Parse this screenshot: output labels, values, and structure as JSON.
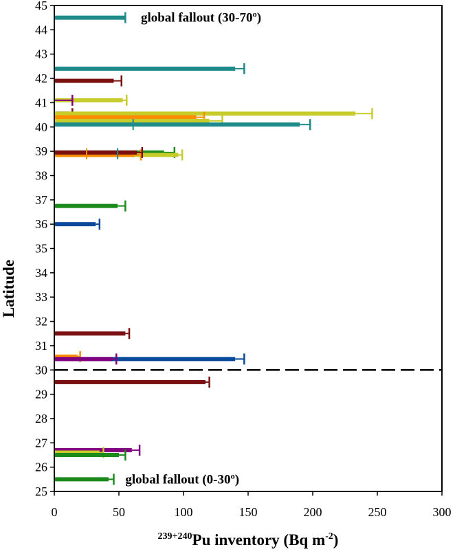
{
  "chart_data": {
    "type": "bar",
    "orientation": "horizontal",
    "xlabel_sup": "239+240",
    "xlabel_main": "Pu inventory (Bq m",
    "xlabel_exp": "-2",
    "xlabel_end": ")",
    "ylabel": "Latitude",
    "xlim": [
      0,
      300
    ],
    "ylim": [
      25,
      45
    ],
    "xticks": [
      0,
      50,
      100,
      150,
      200,
      250,
      300
    ],
    "yticks": [
      25,
      26,
      27,
      28,
      29,
      30,
      31,
      32,
      33,
      34,
      35,
      36,
      37,
      38,
      39,
      40,
      41,
      42,
      43,
      44,
      45
    ],
    "grid": false,
    "reference_line": {
      "y": 30,
      "style": "dashed"
    },
    "annotations": [
      {
        "text": "global fallout  (30-70º)",
        "x": 67,
        "y": 44.5
      },
      {
        "text": "global fallout  (0-30º)",
        "x": 55,
        "y": 25.5
      }
    ],
    "bars": [
      {
        "y": 44.5,
        "value": 55,
        "err": 55,
        "color": "#1e8a8a"
      },
      {
        "y": 42.4,
        "value": 140,
        "err": 147,
        "color": "#1e8a8a"
      },
      {
        "y": 41.9,
        "value": 46,
        "err": 52,
        "color": "#7a1010"
      },
      {
        "y": 41.1,
        "value": 53,
        "err": 56,
        "color": "#c8cc2a"
      },
      {
        "y": 41.1,
        "value": 0,
        "err": 14,
        "color": "#800080"
      },
      {
        "y": 40.55,
        "value": 12,
        "err": 14,
        "color": "#7a1010"
      },
      {
        "y": 40.55,
        "value": 233,
        "err": 246,
        "color": "#c8cc2a"
      },
      {
        "y": 40.4,
        "value": 110,
        "err": 116,
        "color": "#ff8c00"
      },
      {
        "y": 40.25,
        "value": 120,
        "err": 130,
        "color": "#c8cc2a"
      },
      {
        "y": 40.1,
        "value": 190,
        "err": 198,
        "color": "#1e8a8a"
      },
      {
        "y": 38.95,
        "value": 85,
        "err": 93,
        "color": "#1a8a1a"
      },
      {
        "y": 38.85,
        "value": 96,
        "err": 99,
        "color": "#c8cc2a"
      },
      {
        "y": 38.85,
        "value": 62,
        "err": 67,
        "color": "#ff8c00"
      },
      {
        "y": 38.95,
        "value": 64,
        "err": 68,
        "color": "#7a1010"
      },
      {
        "y": 36.75,
        "value": 49,
        "err": 55,
        "color": "#1a8a1a"
      },
      {
        "y": 36.0,
        "value": 32,
        "err": 35,
        "color": "#0a4a9a"
      },
      {
        "y": 31.5,
        "value": 55,
        "err": 58,
        "color": "#7a1010"
      },
      {
        "y": 30.55,
        "value": 18,
        "err": 20,
        "color": "#ff8c00"
      },
      {
        "y": 30.45,
        "value": 140,
        "err": 147,
        "color": "#0a4a9a"
      },
      {
        "y": 30.45,
        "value": 45,
        "err": 48,
        "color": "#800080"
      },
      {
        "y": 29.5,
        "value": 117,
        "err": 120,
        "color": "#7a1010"
      },
      {
        "y": 26.7,
        "value": 60,
        "err": 66,
        "color": "#800080"
      },
      {
        "y": 26.6,
        "value": 35,
        "err": 38,
        "color": "#c8cc2a"
      },
      {
        "y": 26.5,
        "value": 50,
        "err": 55,
        "color": "#1a8a1a"
      },
      {
        "y": 25.5,
        "value": 42,
        "err": 46,
        "color": "#1a8a1a"
      }
    ],
    "error_marks": [
      {
        "y": 40.1,
        "x": 61,
        "color": "#1e8a8a"
      },
      {
        "y": 38.9,
        "x": 25,
        "color": "#ff8c00"
      },
      {
        "y": 38.9,
        "x": 49,
        "color": "#1e8a8a"
      }
    ]
  }
}
